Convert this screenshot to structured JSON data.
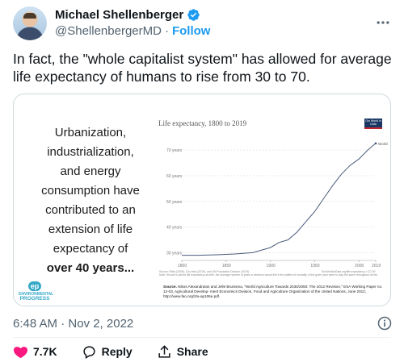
{
  "author": {
    "name": "Michael Shellenberger",
    "handle": "@ShellenbergerMD",
    "separator": "·",
    "follow_label": "Follow"
  },
  "tweet": {
    "text": "In fact, the \"whole capitalist system\" has allowed for average life expectancy of humans to rise from 30 to 70."
  },
  "media": {
    "left_lines": [
      "Urbanization,",
      "industrialization,",
      "and energy",
      "consumption have",
      "contributed to an",
      "extension of life",
      "expectancy of"
    ],
    "left_bold": "over 40 years...",
    "logo_lines": [
      "ENVIRONMENTAL",
      "PROGRESS"
    ],
    "logo_mark": "ep",
    "owid_label": "Our World in Data",
    "source_label": "Source.",
    "source_text": "Nikos Alexandratos and Jelle Bruinsma, \"World Agriculture Towards 2030/2050: The 2012 Revision,\" ESA Working Paper no. 12-03, Agricultural Develop- ment Economics Division, Food and Agriculture Organization of the United Nations, June 2012; http://www.fao.org/3/a-ap106e.pdf."
  },
  "chart_data": {
    "type": "line",
    "title": "Life expectancy, 1800 to 2019",
    "x": [
      1800,
      1820,
      1840,
      1860,
      1880,
      1900,
      1910,
      1920,
      1930,
      1940,
      1950,
      1960,
      1970,
      1980,
      1990,
      2000,
      2010,
      2019
    ],
    "series": [
      {
        "name": "World",
        "values": [
          29,
          29,
          29.2,
          29.5,
          30,
          32,
          34,
          35,
          38,
          42,
          46,
          51,
          56,
          60.5,
          64,
          66.5,
          70,
          72.6
        ]
      }
    ],
    "xticks": [
      1800,
      1850,
      1900,
      1950,
      2000,
      2019
    ],
    "ytick_labels": [
      "30 years",
      "40 years",
      "50 years",
      "60 years",
      "70 years"
    ],
    "yticks": [
      30,
      40,
      50,
      60,
      70
    ],
    "xlim": [
      1800,
      2019
    ],
    "ylim": [
      27,
      76
    ],
    "grid": true,
    "notes": [
      "Source: Riley (2005), Clio Infra (2015), and UN Population Division (2019)",
      "Note: Shown is period life expectancy at birth, the average number of years a newborn would live if the pattern of mortality in the given year were to stay the same throughout its life."
    ],
    "license": "OurWorldInData.org/life-expectancy • CC BY",
    "line_color": "#4a5a7a"
  },
  "footer": {
    "timestamp": "6:48 AM · Nov 2, 2022",
    "likes": "7.7K",
    "reply_label": "Reply",
    "share_label": "Share"
  },
  "colors": {
    "accent": "#1d9bf0",
    "like": "#f91880",
    "muted": "#536471"
  }
}
